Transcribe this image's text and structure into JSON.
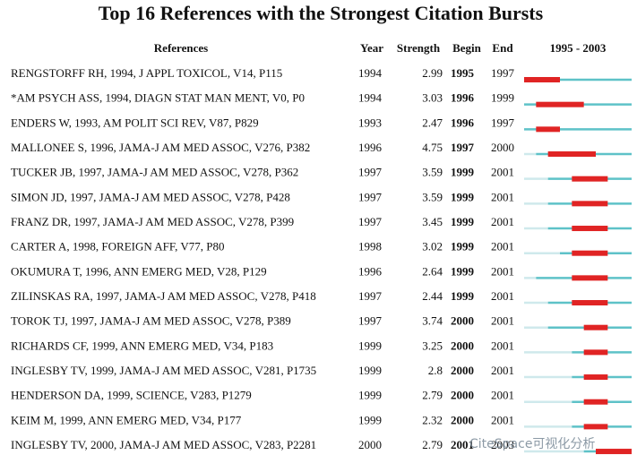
{
  "title": "Top 16 References with the Strongest Citation Bursts",
  "headers": [
    "References",
    "Year",
    "Strength",
    "Begin",
    "End",
    "1995 - 2003"
  ],
  "xlim": [
    1995,
    2003
  ],
  "rows": [
    [
      "RENGSTORFF RH, 1994, J APPL TOXICOL, V14, P115",
      1994,
      2.99,
      1995,
      1997
    ],
    [
      "*AM PSYCH ASS, 1994, DIAGN STAT MAN MENT, V0, P0",
      1994,
      3.03,
      1996,
      1999
    ],
    [
      "ENDERS W, 1993, AM POLIT SCI REV, V87, P829",
      1993,
      2.47,
      1996,
      1997
    ],
    [
      "MALLONEE S, 1996, JAMA-J AM MED ASSOC, V276, P382",
      1996,
      4.75,
      1997,
      2000
    ],
    [
      "TUCKER JB, 1997, JAMA-J AM MED ASSOC, V278, P362",
      1997,
      3.59,
      1999,
      2001
    ],
    [
      "SIMON JD, 1997, JAMA-J AM MED ASSOC, V278, P428",
      1997,
      3.59,
      1999,
      2001
    ],
    [
      "FRANZ DR, 1997, JAMA-J AM MED ASSOC, V278, P399",
      1997,
      3.45,
      1999,
      2001
    ],
    [
      "CARTER A, 1998, FOREIGN AFF, V77, P80",
      1998,
      3.02,
      1999,
      2001
    ],
    [
      "OKUMURA T, 1996, ANN EMERG MED, V28, P129",
      1996,
      2.64,
      1999,
      2001
    ],
    [
      "ZILINSKAS RA, 1997, JAMA-J AM MED ASSOC, V278, P418",
      1997,
      2.44,
      1999,
      2001
    ],
    [
      "TOROK TJ, 1997, JAMA-J AM MED ASSOC, V278, P389",
      1997,
      3.74,
      2000,
      2001
    ],
    [
      "RICHARDS CF, 1999, ANN EMERG MED, V34, P183",
      1999,
      3.25,
      2000,
      2001
    ],
    [
      "INGLESBY TV, 1999, JAMA-J AM MED ASSOC, V281, P1735",
      1999,
      2.8,
      2000,
      2001
    ],
    [
      "HENDERSON DA, 1999, SCIENCE, V283, P1279",
      1999,
      2.79,
      2000,
      2001
    ],
    [
      "KEIM M, 1999, ANN EMERG MED, V34, P177",
      1999,
      2.32,
      2000,
      2001
    ],
    [
      "INGLESBY TV, 2000, JAMA-J AM MED ASSOC, V283, P2281",
      2000,
      2.79,
      2001,
      2003
    ]
  ],
  "watermark": "CiteSpace可视化分析"
}
